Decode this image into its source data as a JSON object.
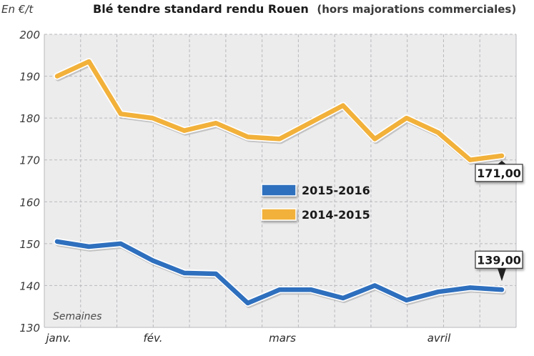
{
  "chart_data": {
    "type": "line",
    "title": "Blé tendre standard rendu Rouen",
    "subtitle": "(hors majorations commerciales)",
    "ylabel": "En €/t",
    "xlabel": "Semaines",
    "ylim": [
      130,
      200
    ],
    "yticks": [
      130,
      140,
      150,
      160,
      170,
      180,
      190,
      200
    ],
    "xticks": [
      "janv.",
      "fév.",
      "mars",
      "avril"
    ],
    "grid": true,
    "legend_position": "center",
    "series": [
      {
        "name": "2015-2016",
        "color": "#2e6fbe",
        "values": [
          150.5,
          149.3,
          150.0,
          146.0,
          143.0,
          142.8,
          135.8,
          139.0,
          139.0,
          137.0,
          140.0,
          136.5,
          138.5,
          139.5,
          139.0
        ]
      },
      {
        "name": "2014-2015",
        "color": "#f2b13a",
        "values": [
          190.0,
          193.5,
          181.0,
          180.0,
          177.0,
          178.8,
          175.5,
          175.0,
          179.0,
          183.0,
          175.0,
          180.0,
          176.5,
          170.0,
          171.0
        ]
      }
    ],
    "annotations": [
      {
        "series": "2014-2015",
        "label": "171,00"
      },
      {
        "series": "2015-2016",
        "label": "139,00"
      }
    ]
  }
}
